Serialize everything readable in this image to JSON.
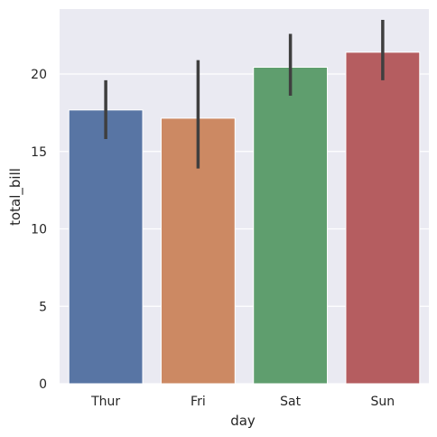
{
  "chart_data": {
    "type": "bar",
    "title": "",
    "xlabel": "day",
    "ylabel": "total_bill",
    "categories": [
      "Thur",
      "Fri",
      "Sat",
      "Sun"
    ],
    "values": [
      17.68,
      17.15,
      20.44,
      21.41
    ],
    "error_bars": [
      [
        15.8,
        19.6
      ],
      [
        13.9,
        20.9
      ],
      [
        18.6,
        22.6
      ],
      [
        19.6,
        23.5
      ]
    ],
    "colors": [
      "#5875a4",
      "#cc8963",
      "#5f9e6e",
      "#b55d60"
    ],
    "error_color": "#3f3f3f",
    "ylim": [
      0,
      24.2
    ],
    "yticks": [
      0,
      5,
      10,
      15,
      20
    ],
    "grid": true,
    "background": "#eaeaf2"
  }
}
